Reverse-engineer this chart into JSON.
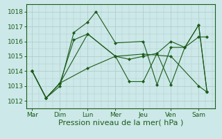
{
  "xlabel": "Pression niveau de la mer( hPa )",
  "background_color": "#cce8e8",
  "grid_color": "#b0c8c8",
  "line_color": "#1a5c1a",
  "xtick_labels": [
    "Mar",
    "Dim",
    "Lun",
    "Mer",
    "Jeu",
    "Ven",
    "Sam"
  ],
  "ylim": [
    1011.5,
    1018.5
  ],
  "yticks": [
    1012,
    1013,
    1014,
    1015,
    1016,
    1017,
    1018
  ],
  "series": [
    {
      "x": [
        0,
        0.5,
        1,
        2,
        3,
        3.5,
        4,
        4.5,
        5,
        5.5,
        6,
        6.3
      ],
      "y": [
        1014.0,
        1012.2,
        1013.2,
        1016.5,
        1015.0,
        1013.3,
        1013.3,
        1015.2,
        1013.1,
        1015.6,
        1017.1,
        1012.6
      ]
    },
    {
      "x": [
        0,
        0.5,
        1,
        1.5,
        2,
        3,
        3.5,
        4,
        4.5,
        5,
        5.5,
        6,
        6.3
      ],
      "y": [
        1014.0,
        1012.2,
        1013.2,
        1016.1,
        1016.5,
        1015.0,
        1014.8,
        1015.0,
        1015.2,
        1016.0,
        1015.6,
        1016.3,
        1016.3
      ]
    },
    {
      "x": [
        0,
        0.5,
        1,
        2,
        3,
        4,
        5,
        6,
        6.3
      ],
      "y": [
        1014.0,
        1012.2,
        1013.2,
        1014.2,
        1015.0,
        1015.15,
        1015.0,
        1013.0,
        1012.6
      ]
    },
    {
      "x": [
        0,
        0.5,
        1,
        1.5,
        2,
        2.3,
        3,
        4,
        4.5,
        5,
        5.5,
        6,
        6.3
      ],
      "y": [
        1014.0,
        1012.2,
        1013.0,
        1016.6,
        1017.3,
        1018.0,
        1015.9,
        1016.0,
        1013.1,
        1015.6,
        1015.6,
        1017.1,
        1012.6
      ]
    }
  ],
  "xtick_positions": [
    0,
    1,
    2,
    3,
    4,
    5,
    6
  ],
  "fontsize_xlabel": 8,
  "fontsize_ticks": 6.5
}
